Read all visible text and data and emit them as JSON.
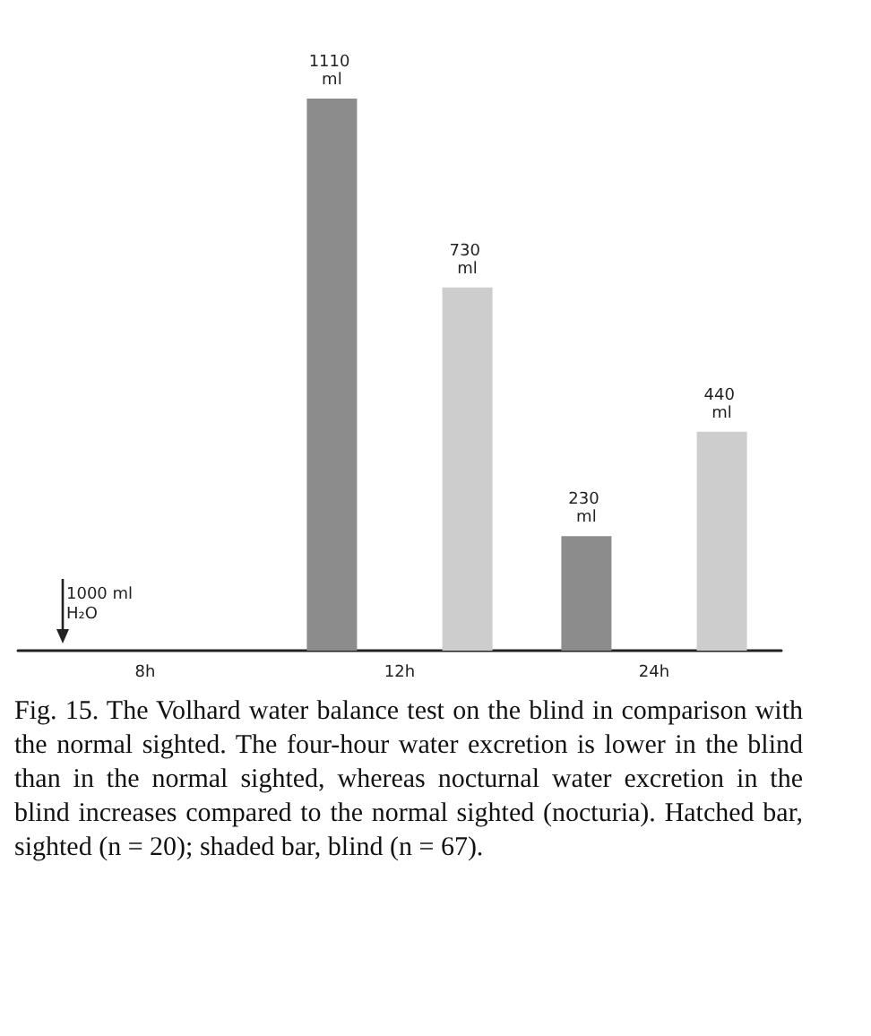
{
  "chart_data": {
    "type": "bar",
    "categories": [
      "8h",
      "12h",
      "24h"
    ],
    "series": [
      {
        "color": "#8c8c8c",
        "values": [
          null,
          1110,
          230
        ],
        "value_labels": [
          null,
          "1110 ml",
          "230 ml"
        ]
      },
      {
        "color": "#cdcdcd",
        "values": [
          null,
          730,
          440
        ],
        "value_labels": [
          null,
          "730 ml",
          "440 ml"
        ]
      }
    ],
    "annotations": [
      "1000 ml H₂O",
      "Fig. 15. The Volhard water balance test on the blind in comparison with the normal sighted. The four-hour water excretion is lower in the blind than in the normal sighted, whereas nocturnal water excretion in the blind increases compared to the normal sighted (nocturia). Hatched bar, sighted (n = 20); shaded bar, blind (n = 67)."
    ]
  }
}
